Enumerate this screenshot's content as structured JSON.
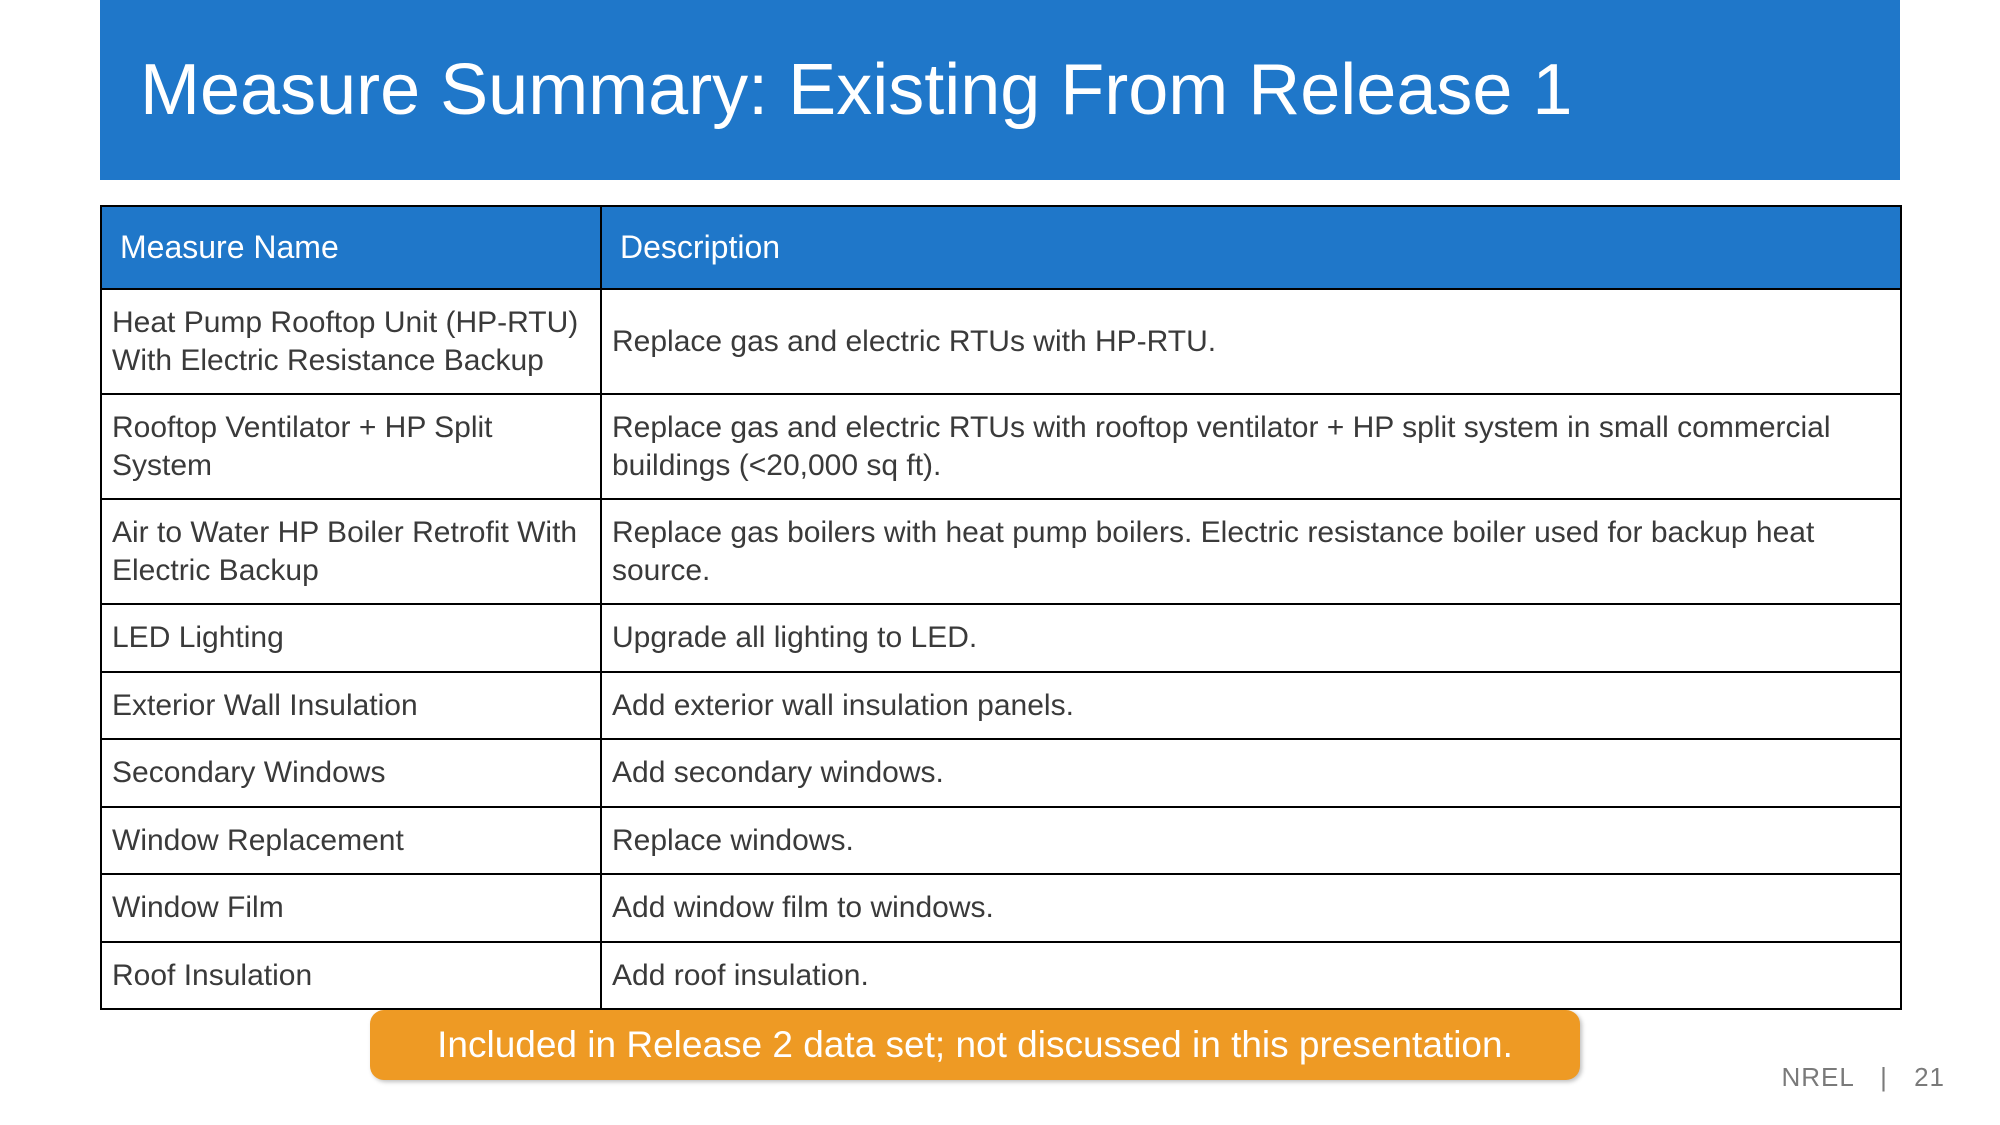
{
  "colors": {
    "brand_blue": "#1f77c9",
    "title_text": "#ffffff",
    "header_bg": "#1f77c9",
    "header_text": "#ffffff",
    "callout_bg": "#ee9a24",
    "callout_text": "#ffffff",
    "footer_text": "#7a7a7a"
  },
  "title": "Measure Summary: Existing From Release 1",
  "table": {
    "columns": [
      "Measure Name",
      "Description"
    ],
    "rows": [
      [
        "Heat Pump Rooftop Unit (HP-RTU) With Electric Resistance Backup",
        "Replace gas and electric RTUs with HP-RTU."
      ],
      [
        "Rooftop Ventilator + HP Split System",
        "Replace gas and electric RTUs with rooftop ventilator + HP split system in small commercial buildings (<20,000 sq ft)."
      ],
      [
        "Air to Water HP Boiler Retrofit With Electric Backup",
        "Replace gas boilers with heat pump boilers. Electric resistance boiler used for backup heat source."
      ],
      [
        "LED Lighting",
        "Upgrade all lighting to LED."
      ],
      [
        "Exterior Wall Insulation",
        "Add exterior wall insulation panels."
      ],
      [
        "Secondary Windows",
        "Add secondary windows."
      ],
      [
        "Window Replacement",
        "Replace windows."
      ],
      [
        "Window Film",
        "Add window film to windows."
      ],
      [
        "Roof Insulation",
        "Add roof insulation."
      ]
    ]
  },
  "callout": "Included in Release 2 data set; not discussed in this presentation.",
  "footer": {
    "org": "NREL",
    "sep": "|",
    "page": "21"
  }
}
